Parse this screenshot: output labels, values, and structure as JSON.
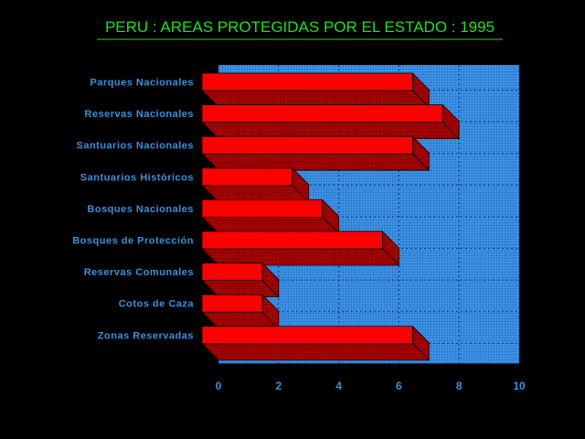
{
  "chart_data": {
    "type": "bar",
    "orientation": "horizontal",
    "title": "PERU : AREAS PROTEGIDAS POR EL ESTADO : 1995",
    "xlabel": "",
    "ylabel": "",
    "categories": [
      "Parques Nacionales",
      "Reservas Nacionales",
      "Santuarios Nacionales",
      "Santuarios Históricos",
      "Bosques Nacionales",
      "Bosques de Protección",
      "Reservas Comunales",
      "Cotos de Caza",
      "Zonas Reservadas"
    ],
    "values": [
      7,
      8,
      7,
      3,
      4,
      6,
      2,
      2,
      7
    ],
    "xlim": [
      0,
      10
    ],
    "xticks": [
      "0",
      "2",
      "4",
      "6",
      "8",
      "10"
    ],
    "grid": true,
    "bar_3d": true,
    "legend": "none"
  },
  "colors": {
    "background": "#000000",
    "plot_background": "#3a8fe0",
    "grid": "#1a2a99",
    "bar_front": "#ff0000",
    "bar_top": "#ee1010",
    "bar_side": "#990000",
    "title_text": "#22dd22",
    "title_underline": "#22dd22",
    "label_text": "#3a8fe0",
    "axis_line": "#1a2a99"
  }
}
